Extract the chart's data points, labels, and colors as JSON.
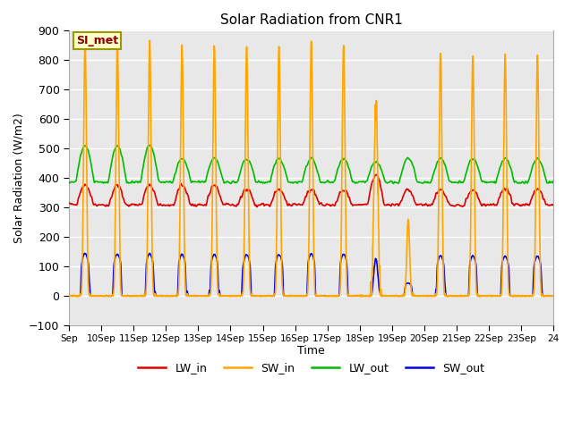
{
  "title": "Solar Radiation from CNR1",
  "xlabel": "Time",
  "ylabel": "Solar Radiation (W/m2)",
  "ylim": [
    -100,
    900
  ],
  "annotation": "SI_met",
  "background_color": "#e8e8e8",
  "grid_color": "white",
  "series": {
    "LW_in": {
      "color": "#dd0000",
      "label": "LW_in"
    },
    "SW_in": {
      "color": "#ffa500",
      "label": "SW_in"
    },
    "LW_out": {
      "color": "#00bb00",
      "label": "LW_out"
    },
    "SW_out": {
      "color": "#0000dd",
      "label": "SW_out"
    }
  },
  "xtick_labels": [
    "Sep",
    "10Sep",
    "11Sep",
    "12Sep",
    "13Sep",
    "14Sep",
    "15Sep",
    "16Sep",
    "17Sep",
    "18Sep",
    "19Sep",
    "20Sep",
    "21Sep",
    "22Sep",
    "23Sep",
    "24"
  ],
  "n_days": 15,
  "points_per_day": 144
}
